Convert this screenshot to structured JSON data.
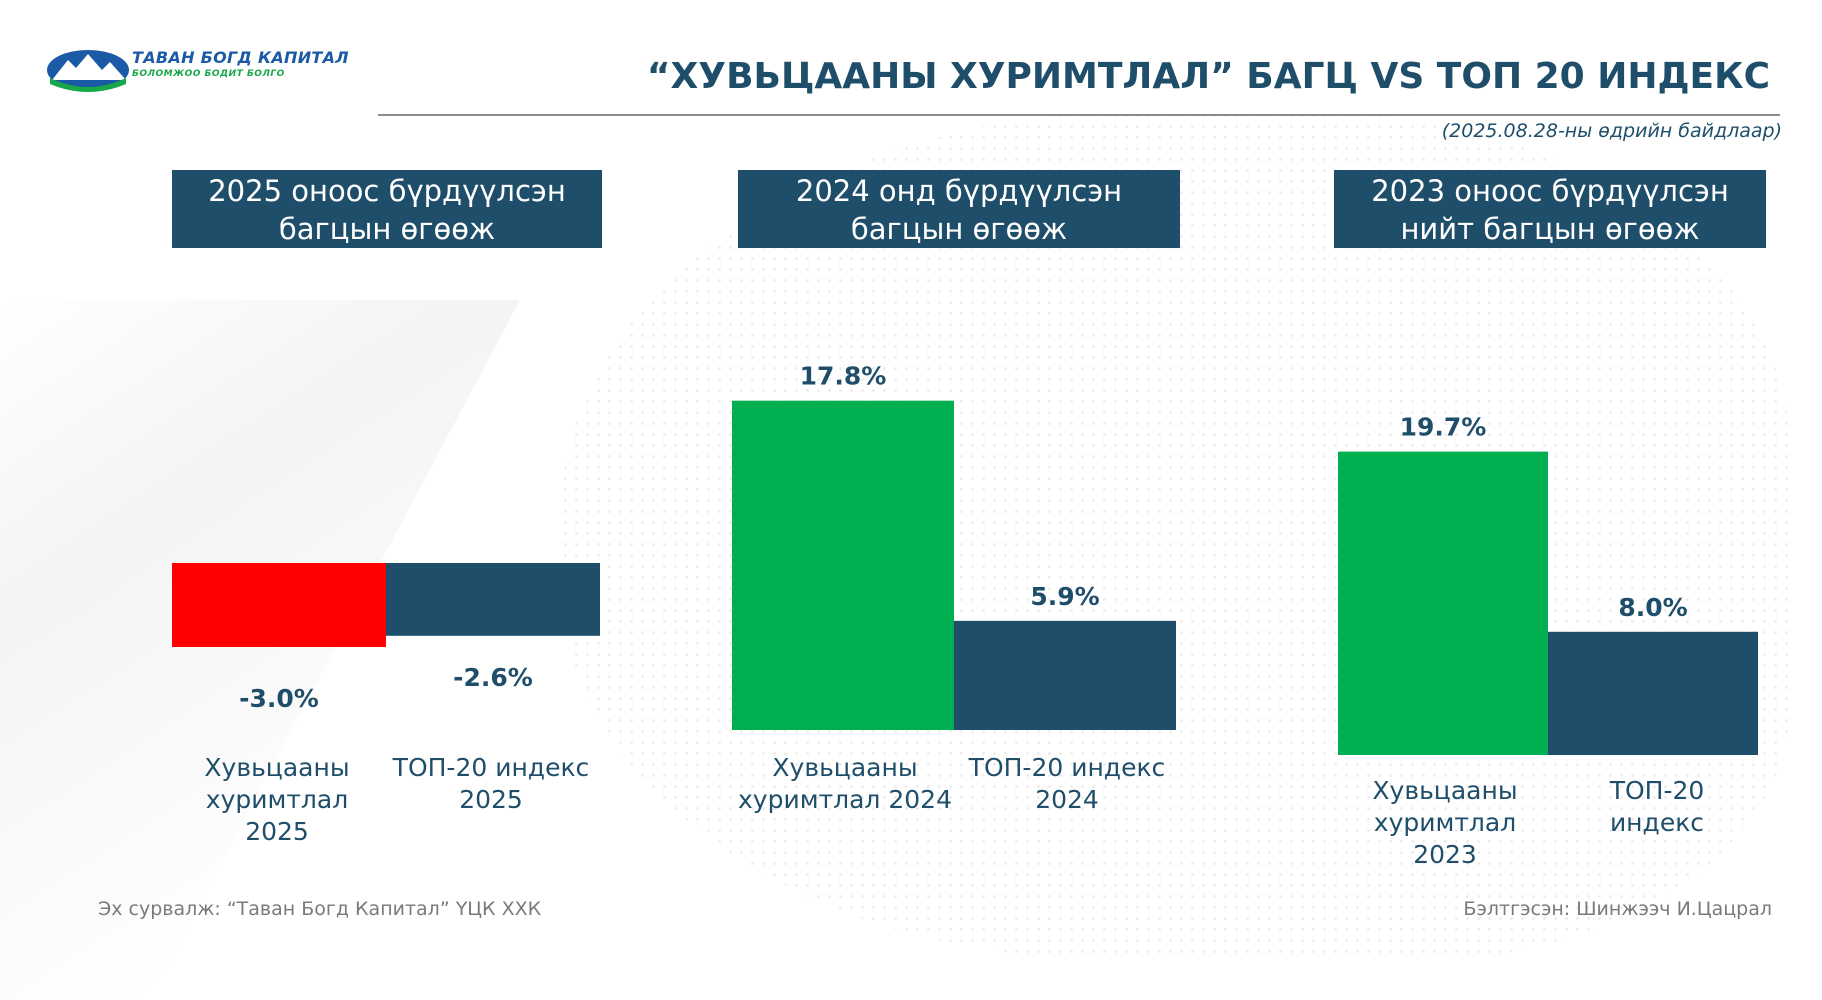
{
  "logo": {
    "name": "ТАВАН БОГД КАПИТАЛ",
    "tagline": "БОЛОМЖОО БОДИТ БОЛГО",
    "colors": {
      "blue": "#1b5aa5",
      "green": "#17a84a"
    }
  },
  "header": {
    "title": "“ХУВЬЦААНЫ ХУРИМТЛАЛ” БАГЦ VS ТОП 20 ИНДЕКС",
    "date_note": "(2025.08.28-ны өдрийн байдлаар)"
  },
  "footer": {
    "source": "Эх сурвалж: “Таван Богд Капитал” ҮЦК ХХК",
    "prepared_by": "Бэлтгэсэн: Шинжээч И.Цацрал"
  },
  "colors": {
    "navy": "#1f4e6b",
    "green": "#00b050",
    "red": "#ff0000"
  },
  "chart_data": [
    {
      "type": "bar",
      "title": "2025 оноос бүрдүүлсэн багцын өгөөж",
      "categories": [
        "Хувьцааны хуримтлал 2025",
        "ТОП-20 индекс 2025"
      ],
      "values": [
        -3.0,
        -2.6
      ],
      "value_labels": [
        "-3.0%",
        "-2.6%"
      ],
      "bar_colors": [
        "#ff0000",
        "#1f4e6b"
      ],
      "unit": "%"
    },
    {
      "type": "bar",
      "title": "2024 онд бүрдүүлсэн багцын өгөөж",
      "categories": [
        "Хувьцааны хуримтлал 2024",
        "ТОП-20 индекс 2024"
      ],
      "values": [
        17.8,
        5.9
      ],
      "value_labels": [
        "17.8%",
        "5.9%"
      ],
      "bar_colors": [
        "#00b050",
        "#1f4e6b"
      ],
      "unit": "%"
    },
    {
      "type": "bar",
      "title": "2023 оноос бүрдүүлсэн нийт багцын өгөөж",
      "categories": [
        "Хувьцааны хуримтлал 2023",
        "ТОП-20 индекс"
      ],
      "values": [
        19.7,
        8.0
      ],
      "value_labels": [
        "19.7%",
        "8.0%"
      ],
      "bar_colors": [
        "#00b050",
        "#1f4e6b"
      ],
      "unit": "%"
    }
  ]
}
